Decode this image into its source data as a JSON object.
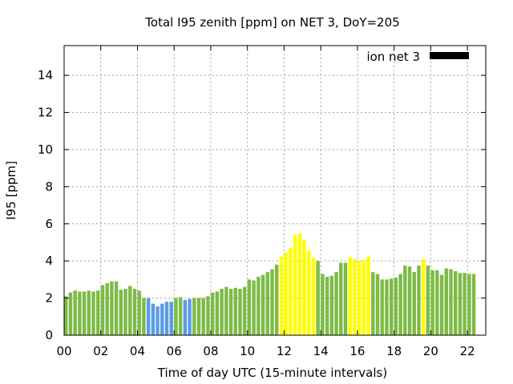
{
  "chart_data": {
    "type": "bar",
    "title": "Total I95 zenith [ppm] on NET 3, DoY=205",
    "xlabel": "Time of day UTC (15-minute intervals)",
    "ylabel": "I95 [ppm]",
    "xlim": [
      0,
      23
    ],
    "ylim": [
      0,
      15.6
    ],
    "x_ticks": [
      "00",
      "02",
      "04",
      "06",
      "08",
      "10",
      "12",
      "14",
      "16",
      "18",
      "20",
      "22"
    ],
    "y_ticks": [
      "0",
      "2",
      "4",
      "6",
      "8",
      "10",
      "12",
      "14"
    ],
    "grid": true,
    "legend": {
      "placement": "top-right",
      "entries": [
        {
          "label": "ion net 3",
          "color": "#000000"
        }
      ]
    },
    "colors": {
      "green": "#7dbb47",
      "blue": "#5b9ce6",
      "yellow": "#ffff00"
    },
    "series": [
      {
        "values": [
          2.1,
          2.3,
          2.4,
          2.35,
          2.35,
          2.4,
          2.35,
          2.4,
          2.7,
          2.8,
          2.9,
          2.9,
          2.45,
          2.5,
          2.65,
          2.5,
          2.4,
          2.0,
          2.0,
          1.7,
          1.55,
          1.7,
          1.8,
          1.8,
          2.0,
          2.05,
          1.9,
          1.95,
          2.0,
          2.0,
          2.0,
          2.1,
          2.3,
          2.35,
          2.5,
          2.6,
          2.5,
          2.55,
          2.5,
          2.6,
          3.0,
          2.95,
          3.15,
          3.25,
          3.4,
          3.55,
          3.8,
          4.25,
          4.45,
          4.7,
          5.4,
          5.5,
          5.15,
          4.55,
          4.15,
          4.0,
          3.3,
          3.15,
          3.2,
          3.4,
          3.9,
          3.9,
          4.2,
          4.1,
          4.0,
          4.0,
          4.25,
          3.4,
          3.3,
          3.0,
          3.0,
          3.05,
          3.1,
          3.3,
          3.75,
          3.7,
          3.4,
          3.75,
          4.1,
          3.75,
          3.5,
          3.5,
          3.25,
          3.6,
          3.55,
          3.45,
          3.35,
          3.35,
          3.3,
          3.3
        ],
        "colors": [
          "green",
          "green",
          "green",
          "green",
          "green",
          "green",
          "green",
          "green",
          "green",
          "green",
          "green",
          "green",
          "green",
          "green",
          "green",
          "green",
          "green",
          "green",
          "blue",
          "blue",
          "blue",
          "blue",
          "blue",
          "blue",
          "green",
          "green",
          "blue",
          "blue",
          "green",
          "green",
          "green",
          "green",
          "green",
          "green",
          "green",
          "green",
          "green",
          "green",
          "green",
          "green",
          "green",
          "green",
          "green",
          "green",
          "green",
          "green",
          "green",
          "yellow",
          "yellow",
          "yellow",
          "yellow",
          "yellow",
          "yellow",
          "yellow",
          "yellow",
          "green",
          "green",
          "green",
          "green",
          "green",
          "green",
          "green",
          "yellow",
          "yellow",
          "yellow",
          "yellow",
          "yellow",
          "green",
          "green",
          "green",
          "green",
          "green",
          "green",
          "green",
          "green",
          "green",
          "green",
          "green",
          "yellow",
          "green",
          "green",
          "green",
          "green",
          "green",
          "green",
          "green",
          "green",
          "green",
          "green",
          "green"
        ]
      }
    ]
  }
}
